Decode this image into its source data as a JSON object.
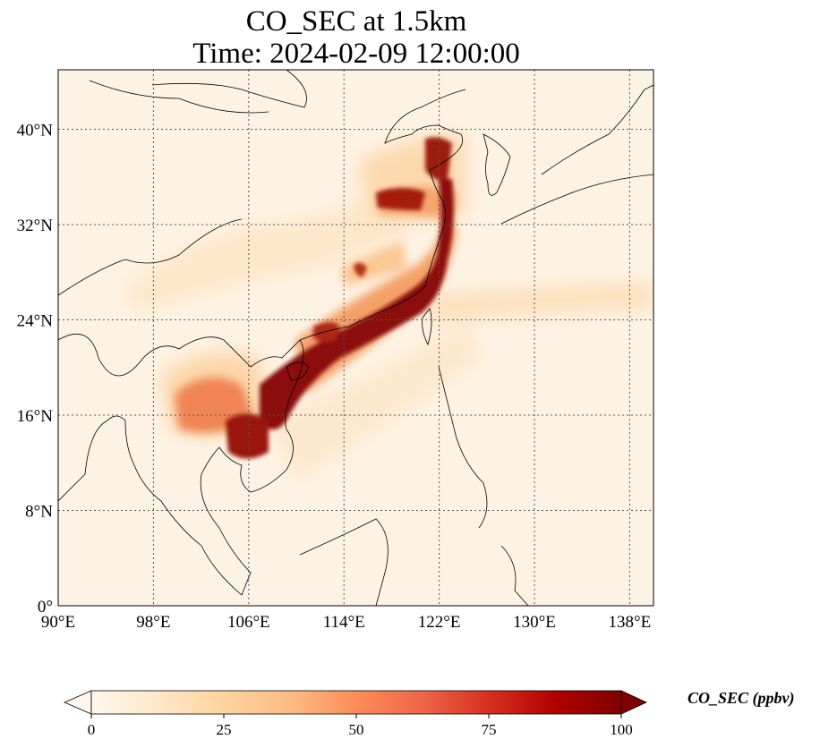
{
  "title": {
    "line1": "CO_SEC at 1.5km",
    "line2": "Time: 2024-02-09 12:00:00"
  },
  "map": {
    "lon_range": [
      90,
      140
    ],
    "lat_range": [
      0,
      45
    ],
    "lon_ticks": [
      90,
      98,
      106,
      114,
      122,
      130,
      138
    ],
    "lat_ticks": [
      0,
      8,
      16,
      24,
      32,
      40
    ],
    "lon_tick_labels": [
      "90°E",
      "98°E",
      "106°E",
      "114°E",
      "122°E",
      "130°E",
      "138°E"
    ],
    "lat_tick_labels": [
      "0°",
      "8°N",
      "16°N",
      "24°N",
      "32°N",
      "40°N"
    ],
    "gridlines": "dotted",
    "coastlines": true,
    "country_borders": true
  },
  "colorbar": {
    "label": "CO_SEC (ppbv)",
    "min": 0,
    "max": 100,
    "ticks": [
      0,
      25,
      50,
      75,
      100
    ],
    "tick_labels": [
      "0",
      "25",
      "50",
      "75",
      "100"
    ],
    "colormap": "OrRd",
    "extend": "both",
    "colors": [
      "#fff7ec",
      "#fee8c8",
      "#fdd49e",
      "#fdbb84",
      "#fc8d59",
      "#ef6548",
      "#d7301f",
      "#b30000",
      "#7f0000"
    ]
  }
}
